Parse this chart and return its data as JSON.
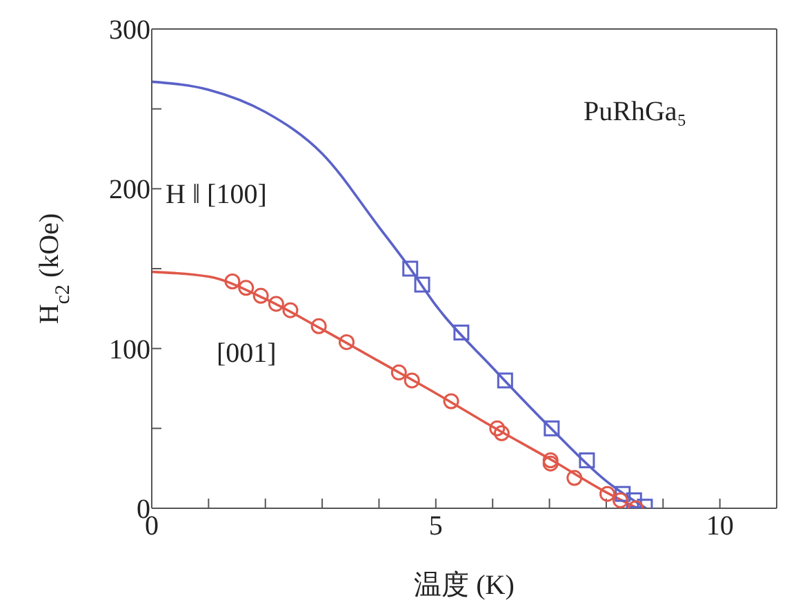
{
  "chart_data": {
    "type": "scatter",
    "xlabel": "温度 (K)",
    "ylabel": "H$_{c2}$ (kOe)",
    "xlim": [
      0,
      11
    ],
    "xticks": [
      0,
      {
        "value": 1,
        "label": null
      },
      {
        "value": 2,
        "label": null
      },
      {
        "value": 3,
        "label": null
      },
      {
        "value": 4,
        "label": null
      },
      5,
      {
        "value": 6,
        "label": null
      },
      {
        "value": 7,
        "label": null
      },
      {
        "value": 8,
        "label": null
      },
      {
        "value": 9,
        "label": null
      },
      10
    ],
    "ylim": [
      0,
      300
    ],
    "yticks": [
      0,
      {
        "value": 50,
        "label": null
      },
      100,
      {
        "value": 150,
        "label": null
      },
      200,
      {
        "value": 250,
        "label": null
      },
      300
    ],
    "annotations": [
      "PuRhGa₅",
      "H ǁ [100]",
      "[001]"
    ],
    "series": [
      {
        "type": "line",
        "color": "#5a62c8",
        "marker": "none",
        "x": [
          0,
          1,
          2,
          3,
          4,
          4.55,
          5,
          6,
          7,
          8,
          8.7
        ],
        "values": [
          267,
          262,
          248,
          222,
          176,
          150,
          127,
          88,
          51,
          17,
          0
        ]
      },
      {
        "type": "line",
        "color": "#e0584a",
        "marker": "none",
        "x": [
          0,
          1,
          2,
          3,
          4,
          5,
          6,
          7,
          8,
          8.55
        ],
        "values": [
          148,
          145,
          131,
          112,
          92,
          72,
          51,
          31,
          10,
          0
        ]
      },
      {
        "color": "#5a62c8",
        "marker": "square",
        "x": [
          4.55,
          4.76,
          5.45,
          6.22,
          7.04,
          7.66,
          8.29,
          8.49,
          8.68
        ],
        "values": [
          150,
          140,
          110,
          80,
          50,
          30,
          9,
          5,
          1
        ]
      },
      {
        "color": "#e0584a",
        "marker": "circle",
        "x": [
          1.42,
          1.66,
          1.92,
          2.19,
          2.44,
          2.94,
          3.43,
          4.35,
          4.58,
          5.27,
          6.08,
          6.16,
          7.02,
          7.02,
          7.44,
          8.02,
          8.25,
          8.52
        ],
        "values": [
          142,
          138,
          133,
          128,
          124,
          114,
          104,
          85,
          80,
          67,
          50,
          47,
          30,
          28,
          19,
          9,
          5,
          0
        ]
      }
    ]
  }
}
